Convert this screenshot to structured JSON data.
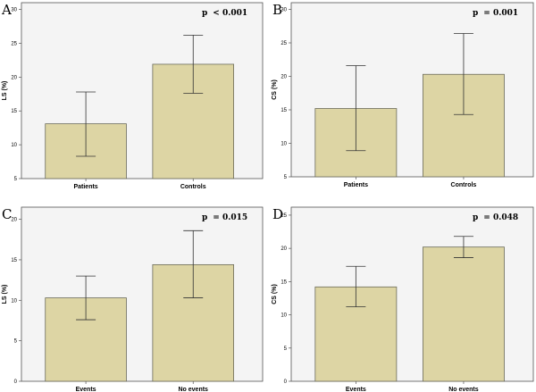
{
  "chart_data": [
    {
      "type": "bar",
      "panel": "A",
      "p_label": "p",
      "p_value": "< 0.001",
      "ylabel": "LS (%)",
      "categories": [
        "Patients",
        "Controls"
      ],
      "values": [
        13.1,
        21.9
      ],
      "error_low": [
        8.3,
        17.6
      ],
      "error_high": [
        17.8,
        26.2
      ],
      "ylim": [
        5,
        31
      ],
      "yticks": [
        5,
        10,
        15,
        20,
        25,
        30
      ]
    },
    {
      "type": "bar",
      "panel": "B",
      "p_label": "p",
      "p_value": "= 0.001",
      "ylabel": "CS (%)",
      "categories": [
        "Patients",
        "Controls"
      ],
      "values": [
        15.2,
        20.3
      ],
      "error_low": [
        8.9,
        14.3
      ],
      "error_high": [
        21.6,
        26.4
      ],
      "ylim": [
        5,
        31
      ],
      "yticks": [
        5,
        10,
        15,
        20,
        25,
        30
      ]
    },
    {
      "type": "bar",
      "panel": "C",
      "p_label": "p",
      "p_value": "= 0.015",
      "ylabel": "LS (%)",
      "categories": [
        "Events",
        "No events"
      ],
      "values": [
        10.3,
        14.4
      ],
      "error_low": [
        7.6,
        10.3
      ],
      "error_high": [
        13.0,
        18.6
      ],
      "ylim": [
        0,
        21.5
      ],
      "yticks": [
        0,
        5,
        10,
        15,
        20
      ]
    },
    {
      "type": "bar",
      "panel": "D",
      "p_label": "p",
      "p_value": "= 0.048",
      "ylabel": "CS (%)",
      "categories": [
        "Events",
        "No events"
      ],
      "values": [
        14.2,
        20.2
      ],
      "error_low": [
        11.2,
        18.6
      ],
      "error_high": [
        17.3,
        21.8
      ],
      "ylim": [
        0,
        26.2
      ],
      "yticks": [
        0,
        5,
        10,
        15,
        20,
        25
      ]
    }
  ],
  "colors": {
    "bar_fill": "#ddd5a4",
    "bar_stroke": "#6b6b5a",
    "plot_bg": "#f4f4f4",
    "axis": "#555555"
  }
}
